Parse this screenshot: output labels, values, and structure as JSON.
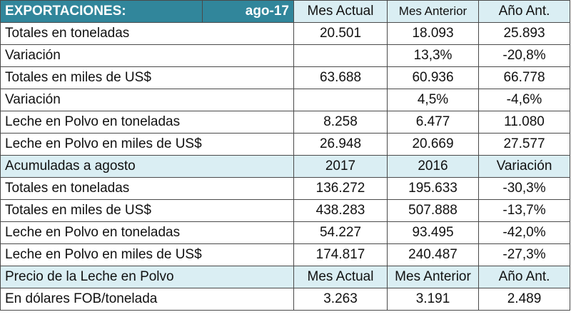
{
  "header": {
    "title": "EXPORTACIONES:",
    "date": "ago-17",
    "columns": [
      "Mes Actual",
      "Mes Anterior",
      "Año Ant."
    ]
  },
  "monthly_rows": [
    {
      "label": "Totales en toneladas",
      "values": [
        "20.501",
        "18.093",
        "25.893"
      ]
    },
    {
      "label": "Variación",
      "values": [
        "",
        "13,3%",
        "-20,8%"
      ]
    },
    {
      "label": "Totales en miles de US$",
      "values": [
        "63.688",
        "60.936",
        "66.778"
      ]
    },
    {
      "label": "Variación",
      "values": [
        "",
        "4,5%",
        "-4,6%"
      ]
    },
    {
      "label": "Leche en Polvo en toneladas",
      "values": [
        "8.258",
        "6.477",
        "11.080"
      ]
    },
    {
      "label": "Leche en Polvo en miles de US$",
      "values": [
        "26.948",
        "20.669",
        "27.577"
      ]
    }
  ],
  "accumulated": {
    "title": "Acumuladas a agosto",
    "columns": [
      "2017",
      "2016",
      "Variación"
    ],
    "rows": [
      {
        "label": "Totales en toneladas",
        "values": [
          "136.272",
          "195.633",
          "-30,3%"
        ]
      },
      {
        "label": "Totales en miles de US$",
        "values": [
          "438.283",
          "507.888",
          "-13,7%"
        ]
      },
      {
        "label": "Leche en Polvo en toneladas",
        "values": [
          "54.227",
          "93.495",
          "-42,0%"
        ]
      },
      {
        "label": "Leche en Polvo en miles de US$",
        "values": [
          "174.817",
          "240.487",
          "-27,3%"
        ]
      }
    ]
  },
  "price": {
    "title": "Precio de la Leche en Polvo",
    "columns": [
      "Mes Actual",
      "Mes Anterior",
      "Año Ant."
    ],
    "rows": [
      {
        "label": "En dólares FOB/tonelada",
        "values": [
          "3.263",
          "3.191",
          "2.489"
        ]
      }
    ]
  },
  "colors": {
    "title_bg": "#31869b",
    "section_bg": "#daeef3",
    "border": "#4a4a4a"
  }
}
